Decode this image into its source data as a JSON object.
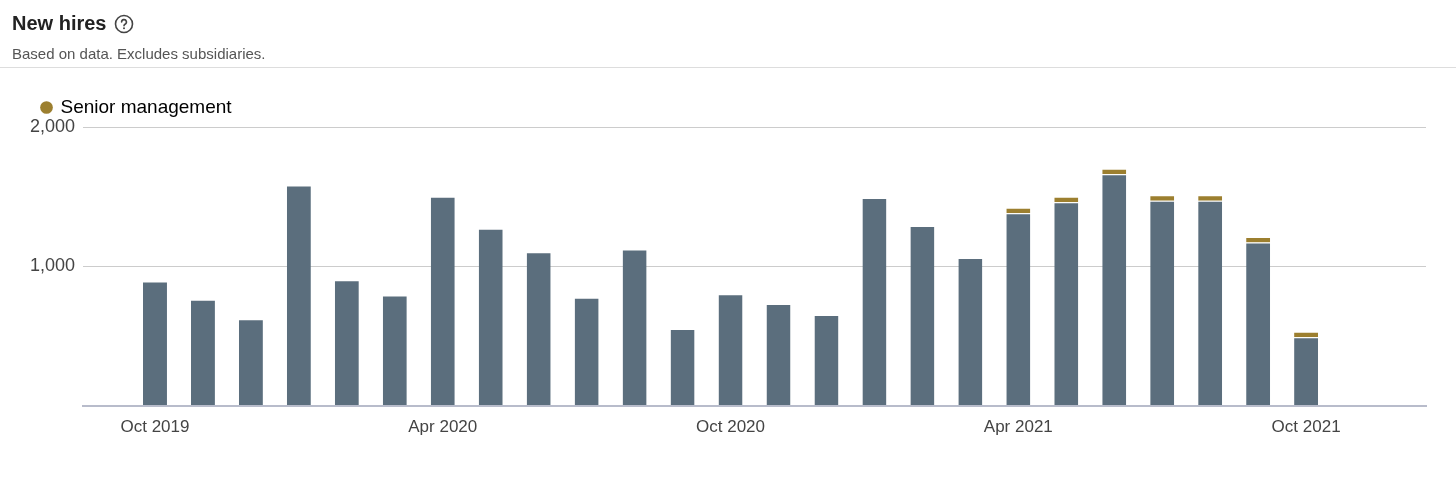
{
  "chart_data": {
    "type": "bar",
    "title": "New hires",
    "subtitle": "Based on data. Excludes subsidiaries.",
    "categories": [
      null,
      "Oct 2019",
      null,
      null,
      null,
      null,
      null,
      "Apr 2020",
      null,
      null,
      null,
      null,
      null,
      "Oct 2020",
      null,
      null,
      null,
      null,
      null,
      "Apr 2021",
      null,
      null,
      null,
      null,
      null,
      "Oct 2021",
      null,
      null
    ],
    "stacked": true,
    "series": [
      {
        "color": "#5b6e7d",
        "values": [
          null,
          890,
          760,
          620,
          1580,
          900,
          790,
          1500,
          1270,
          1100,
          775,
          1120,
          550,
          800,
          730,
          650,
          1490,
          1290,
          1060,
          1380,
          1460,
          1660,
          1470,
          1470,
          1170,
          490,
          null,
          null
        ]
      },
      {
        "name": "Senior management",
        "color": "#9c7f2f",
        "values": [
          null,
          null,
          null,
          null,
          null,
          null,
          null,
          null,
          null,
          null,
          null,
          null,
          null,
          null,
          null,
          null,
          null,
          null,
          null,
          40,
          40,
          40,
          40,
          40,
          40,
          40,
          null,
          null
        ]
      }
    ],
    "ylim": [
      0,
      2000
    ],
    "yticks": [
      {
        "value": 0,
        "label": null
      },
      {
        "value": 1000,
        "label": "1,000"
      },
      {
        "value": 2000,
        "label": "2,000"
      }
    ],
    "grid": "y",
    "legend": "top left"
  }
}
